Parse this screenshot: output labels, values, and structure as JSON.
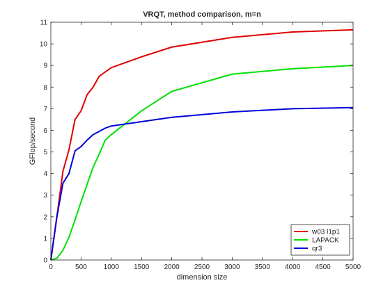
{
  "chart_data": {
    "type": "line",
    "title": "VRQT, method comparison, m=n",
    "xlabel": "dimension size",
    "ylabel": "GFlop/second",
    "xlim": [
      0,
      5000
    ],
    "ylim": [
      0,
      11
    ],
    "xticks": [
      0,
      500,
      1000,
      1500,
      2000,
      2500,
      3000,
      3500,
      4000,
      4500,
      5000
    ],
    "yticks": [
      0,
      1,
      2,
      3,
      4,
      5,
      6,
      7,
      8,
      9,
      10,
      11
    ],
    "grid": false,
    "legend_position": "bottom-right",
    "series": [
      {
        "name": "w03 l1p1",
        "color": "#e00000",
        "x": [
          0,
          100,
          200,
          300,
          400,
          500,
          600,
          700,
          800,
          1000,
          1500,
          2000,
          3000,
          4000,
          5000
        ],
        "y": [
          0,
          2.0,
          4.1,
          5.1,
          6.5,
          6.9,
          7.65,
          8.0,
          8.5,
          8.9,
          9.4,
          9.85,
          10.3,
          10.55,
          10.65
        ]
      },
      {
        "name": "LAPACK",
        "color": "#00e000",
        "x": [
          0,
          100,
          200,
          300,
          400,
          500,
          600,
          700,
          800,
          900,
          1000,
          1500,
          2000,
          3000,
          4000,
          5000
        ],
        "y": [
          0,
          0.08,
          0.45,
          1.05,
          1.85,
          2.7,
          3.5,
          4.3,
          4.9,
          5.55,
          5.8,
          6.9,
          7.8,
          8.6,
          8.85,
          9.0
        ]
      },
      {
        "name": "qr3",
        "color": "#0000d8",
        "x": [
          0,
          100,
          200,
          300,
          400,
          500,
          600,
          700,
          800,
          900,
          1000,
          1500,
          2000,
          3000,
          4000,
          5000
        ],
        "y": [
          0,
          2.0,
          3.55,
          4.0,
          5.05,
          5.25,
          5.55,
          5.8,
          5.95,
          6.1,
          6.2,
          6.4,
          6.6,
          6.85,
          7.0,
          7.05
        ]
      }
    ]
  }
}
